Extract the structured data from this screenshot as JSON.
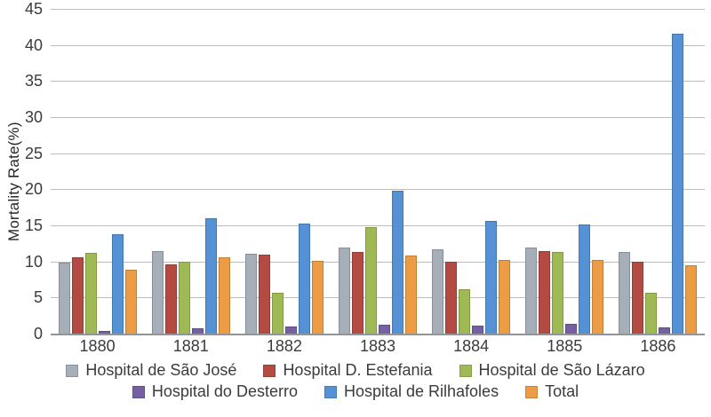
{
  "chart_data": {
    "type": "bar",
    "title": "",
    "xlabel": "",
    "ylabel": "Mortality Rate(%)",
    "ylim": [
      0,
      45
    ],
    "ytick_step": 5,
    "grid": true,
    "legend_position": "bottom",
    "categories": [
      "1880",
      "1881",
      "1882",
      "1883",
      "1884",
      "1885",
      "1886"
    ],
    "series": [
      {
        "name": "Hospital de São José",
        "color": "#a6aeb8",
        "values": [
          9.8,
          11.4,
          11.1,
          11.9,
          11.7,
          11.9,
          11.3
        ]
      },
      {
        "name": "Hospital D. Estefania",
        "color": "#b44b43",
        "values": [
          10.6,
          9.6,
          11.0,
          11.3,
          10.0,
          11.4,
          9.9
        ]
      },
      {
        "name": "Hospital de São Lázaro",
        "color": "#9fba55",
        "values": [
          11.2,
          10.0,
          5.6,
          14.8,
          6.2,
          11.3,
          5.7
        ]
      },
      {
        "name": "Hospital do Desterro",
        "color": "#7460a2",
        "values": [
          0.4,
          0.7,
          1.0,
          1.2,
          1.1,
          1.4,
          0.8
        ]
      },
      {
        "name": "Hospital de Rilhafoles",
        "color": "#5591d5",
        "values": [
          13.8,
          16.0,
          15.2,
          19.8,
          15.6,
          15.1,
          41.5
        ]
      },
      {
        "name": "Total",
        "color": "#eb9c45",
        "values": [
          8.9,
          10.6,
          10.1,
          10.8,
          10.2,
          10.2,
          9.5
        ]
      }
    ],
    "legend_rows": [
      [
        "Hospital de São José",
        "Hospital D. Estefania",
        "Hospital de São Lázaro"
      ],
      [
        "Hospital do Desterro",
        "Hospital de Rilhafoles",
        "Total"
      ]
    ]
  },
  "colors": {
    "gridline": "#bcbcbc",
    "axis_line": "#90959b",
    "tick_text": "#3b3b3b",
    "background": "#ffffff"
  }
}
